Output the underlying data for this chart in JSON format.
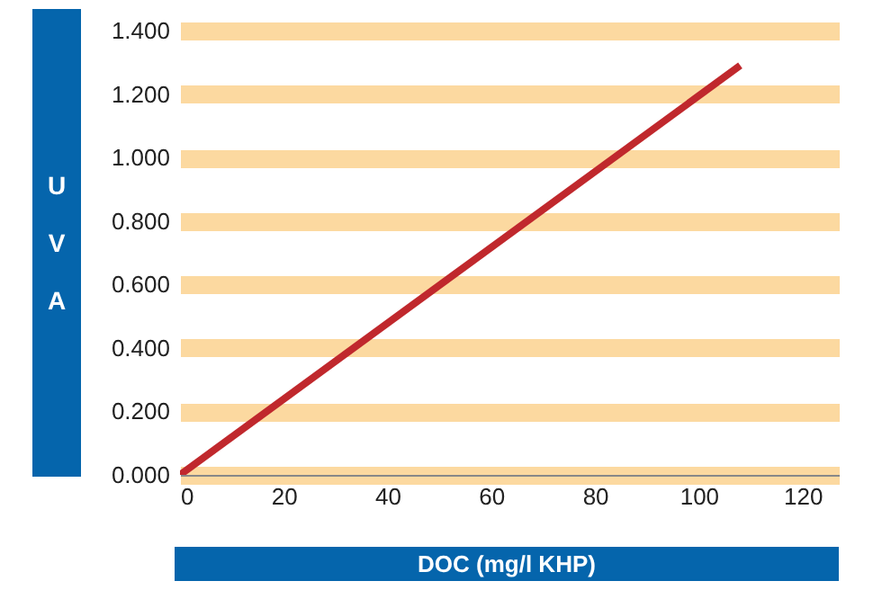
{
  "chart_data": {
    "type": "line",
    "xlabel": "DOC (mg/l KHP)",
    "ylabel": "UVA",
    "x": [
      0,
      108
    ],
    "series": [
      {
        "color": "#c0282d",
        "values": [
          0,
          1.29
        ]
      }
    ],
    "xlim": [
      0,
      127
    ],
    "xticks": [
      0,
      20,
      40,
      60,
      80,
      100,
      120
    ],
    "ylim": [
      0,
      1.4
    ],
    "yticks": [
      {
        "value": 0,
        "label": "0.000"
      },
      {
        "value": 0.2,
        "label": "0.200"
      },
      {
        "value": 0.4,
        "label": "0.400"
      },
      {
        "value": 0.6,
        "label": "0.600"
      },
      {
        "value": 0.8,
        "label": "0.800"
      },
      {
        "value": 1.0,
        "label": "1.000"
      },
      {
        "value": 1.2,
        "label": "1.200"
      },
      {
        "value": 1.4,
        "label": "1.400"
      }
    ],
    "grid": "y",
    "marker": "none",
    "line_style": "solid"
  }
}
